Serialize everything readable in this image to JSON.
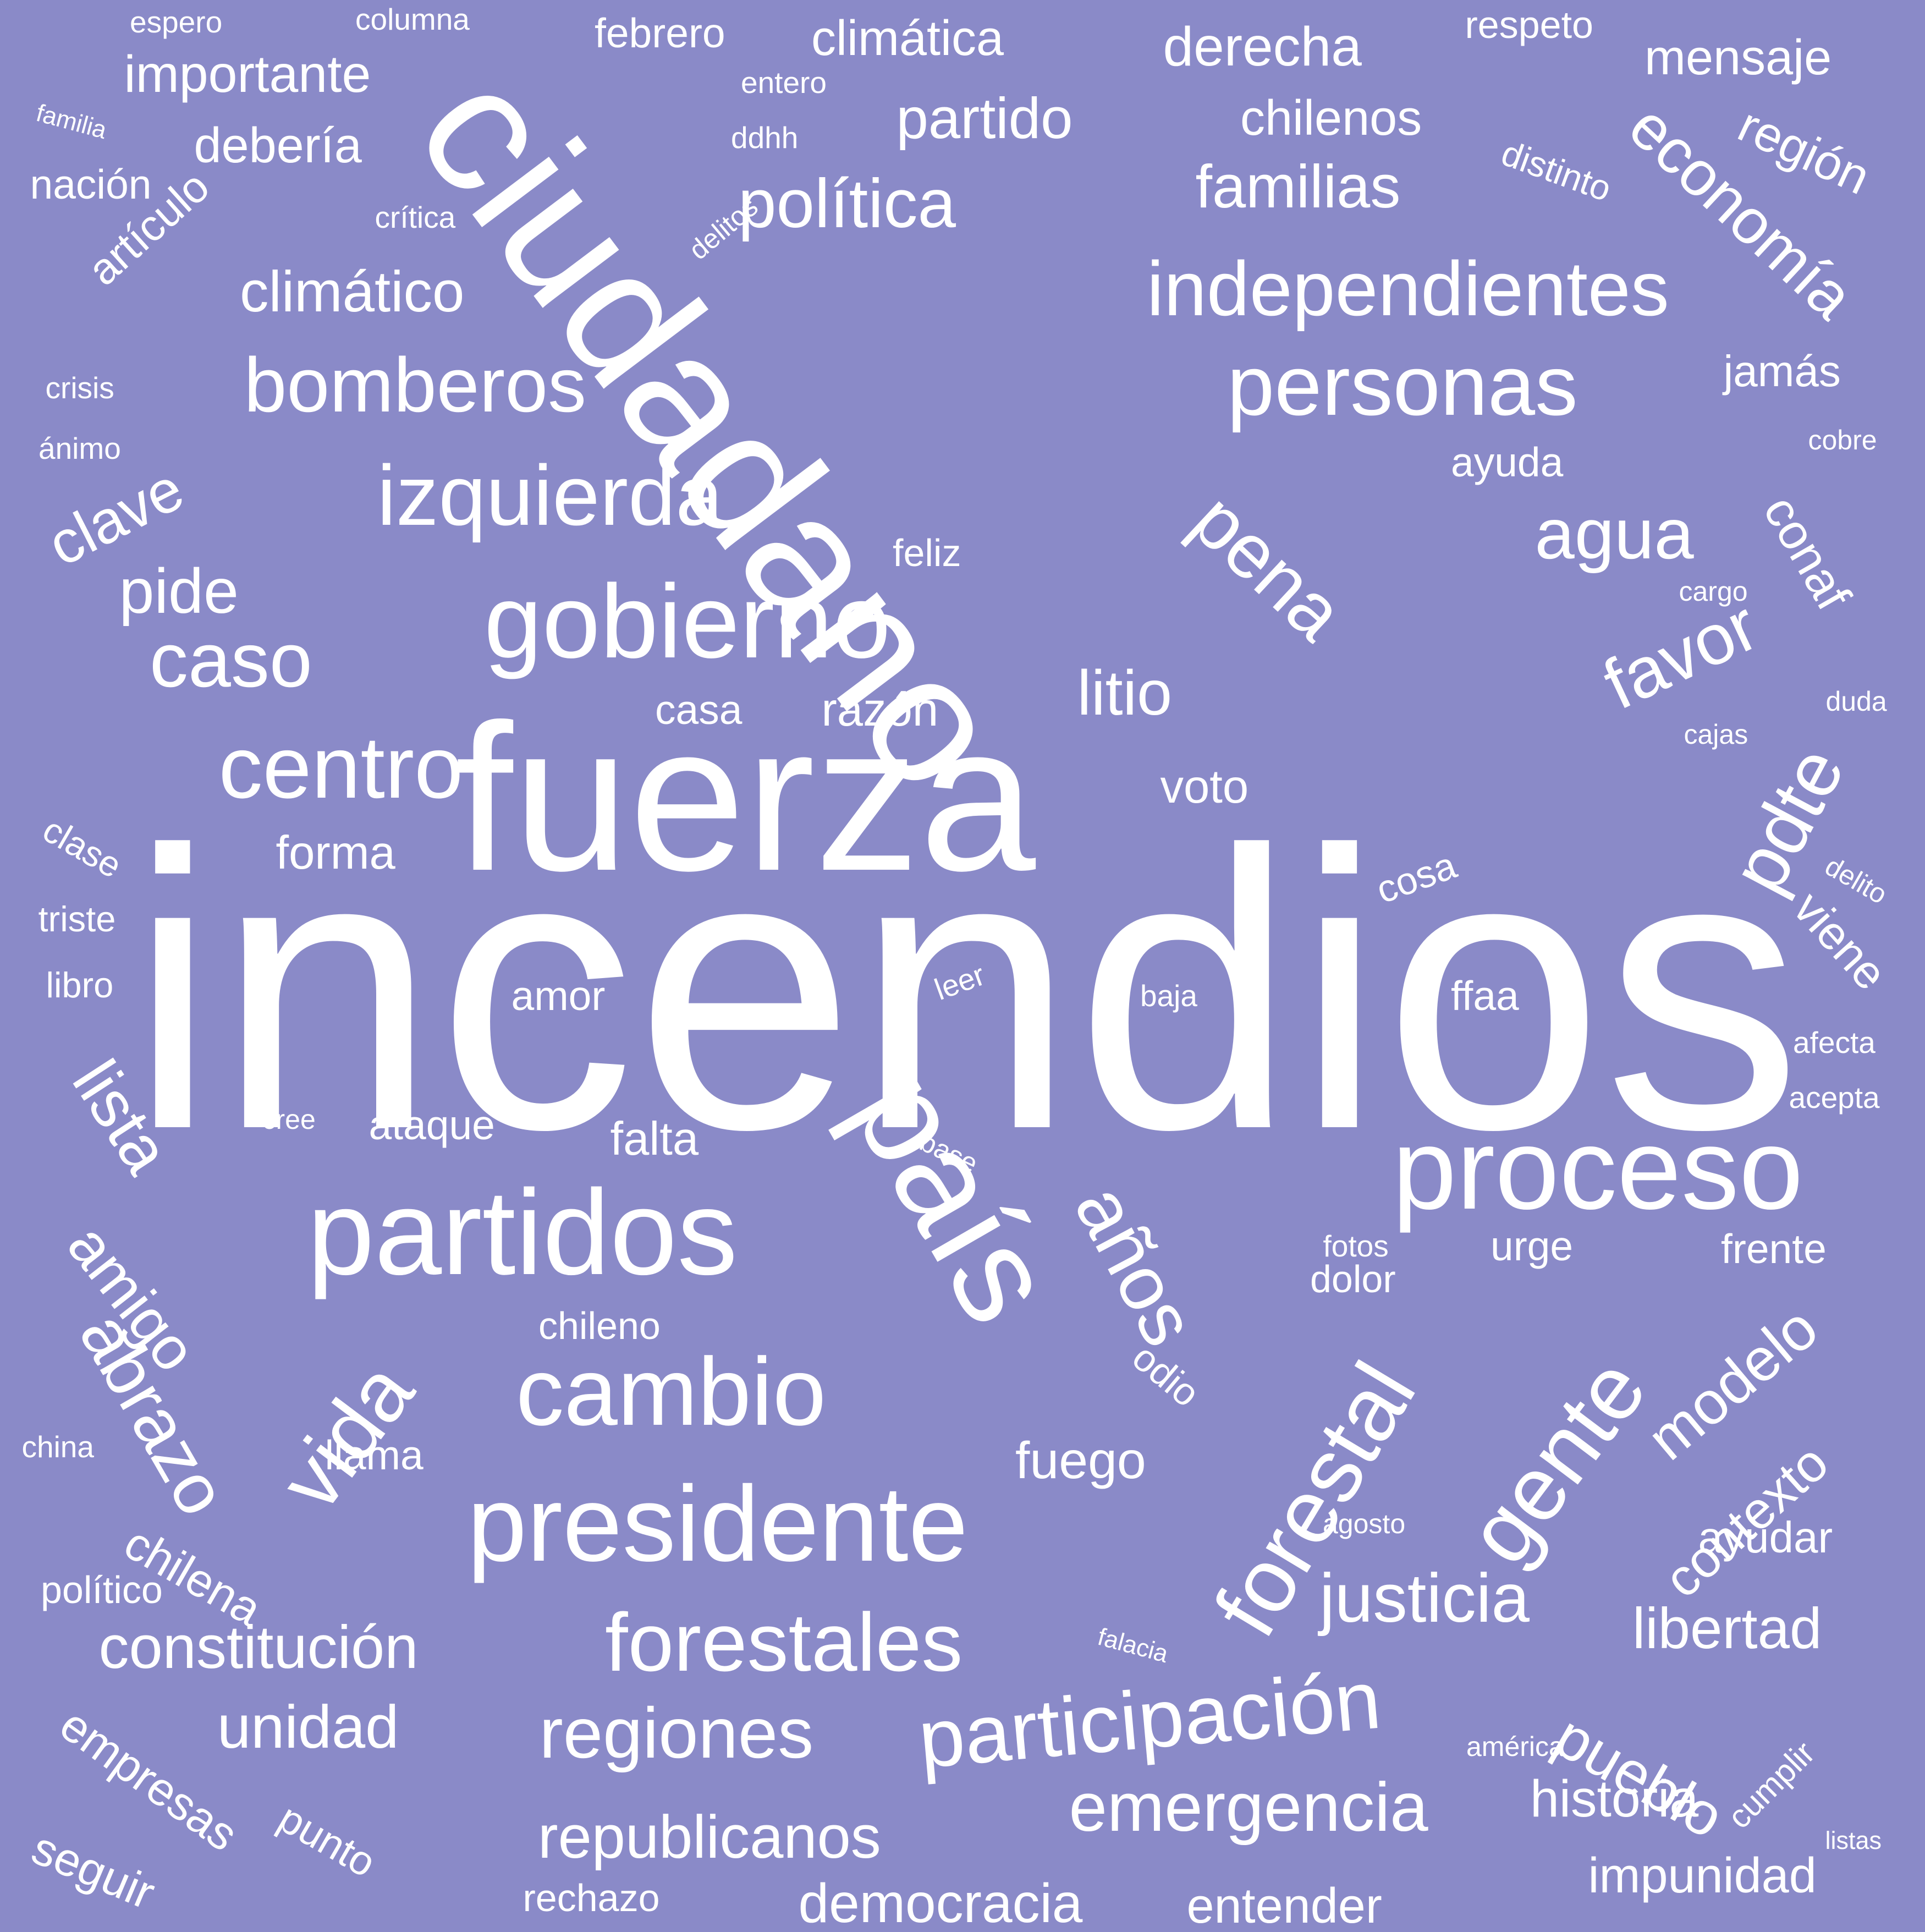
{
  "background_color": "#8a8ac8",
  "text_color": "#ffffff",
  "words": [
    "incendios",
    "ciudadano",
    "fuerza",
    "país",
    "partidos",
    "presidente",
    "proceso",
    "forestal",
    "gobierno",
    "cambio",
    "izquierda",
    "personas",
    "independientes",
    "centro",
    "gente",
    "años",
    "pena",
    "bomberos",
    "forestales",
    "participación",
    "justicia",
    "caso",
    "vida",
    "abrazo",
    "lista",
    "emergencia",
    "regiones",
    "constitución",
    "favor",
    "agua",
    "pdte",
    "modelo",
    "política",
    "economía",
    "republicanos",
    "pueblo",
    "democracia",
    "contexto",
    "libertad",
    "unidad",
    "climático",
    "familias",
    "pide",
    "litio",
    "amigo",
    "historia",
    "clave",
    "partido",
    "derecha",
    "importante",
    "impunidad",
    "entender",
    "empresas",
    "chilena",
    "conaf",
    "mensaje",
    "climática",
    "región",
    "artículo",
    "chilenos",
    "debería",
    "forma",
    "razón",
    "voto",
    "falta",
    "fuego",
    "viene",
    "ayudar",
    "jamás",
    "ayuda",
    "seguir",
    "punto",
    "amor",
    "ffaa",
    "llama",
    "ataque",
    "casa",
    "frente",
    "urge",
    "dolor",
    "rechazo",
    "odio",
    "chileno",
    "cosa",
    "feliz",
    "febrero",
    "respeto",
    "distinto",
    "columna",
    "triste",
    "libro",
    "clase",
    "nación",
    "político",
    "cumplir",
    "espero",
    "entero",
    "ddhh",
    "delitos",
    "crítica",
    "crisis",
    "ánimo",
    "familia",
    "cobre",
    "cargo",
    "duda",
    "cajas",
    "delito",
    "afecta",
    "acepta",
    "leer",
    "baja",
    "base",
    "cree",
    "fotos",
    "agosto",
    "falacia",
    "américa",
    "china",
    "listas"
  ]
}
